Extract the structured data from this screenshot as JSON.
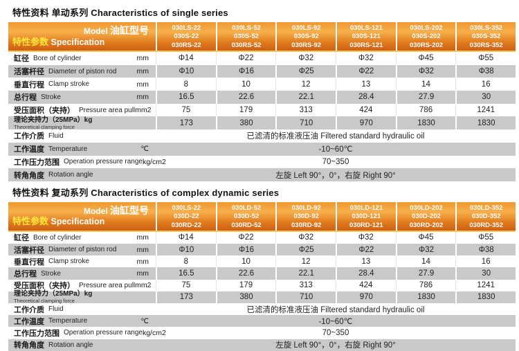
{
  "colors": {
    "header_gradient": [
      "#ef9730",
      "#f8b04c",
      "#e07a1d",
      "#cd5f15"
    ],
    "stripe_gray": "#c9c9c9",
    "spec_label_yellow": "#ffe63c",
    "header_text": "#ffffff",
    "title_text": "#111111"
  },
  "sections": [
    {
      "title_cn": "特性资料  单动系列",
      "title_en": "Characteristics of single series",
      "header": {
        "model_en": "Model",
        "model_cn": "油缸型号",
        "spec_cn": "特性参数",
        "spec_en": "Specification",
        "columns": [
          [
            "030LS-22",
            "030S-22",
            "030RS-22"
          ],
          [
            "030LS-52",
            "030S-52",
            "030RS-52"
          ],
          [
            "030LS-92",
            "030S-92",
            "030RS-92"
          ],
          [
            "030LS-121",
            "030S-121",
            "030RS-121"
          ],
          [
            "030LS-202",
            "030S-202",
            "030RS-202"
          ],
          [
            "030LS-352",
            "030S-352",
            "030RS-352"
          ]
        ]
      },
      "rows": [
        {
          "cn": "缸径",
          "en": "Bore of cylinder",
          "unit": "mm",
          "values": [
            "Φ14",
            "Φ22",
            "Φ32",
            "Φ32",
            "Φ45",
            "Φ55"
          ]
        },
        {
          "cn": "活塞杆径",
          "en": "Diameter of piston rod",
          "unit": "mm",
          "values": [
            "Φ10",
            "Φ16",
            "Φ25",
            "Φ22",
            "Φ32",
            "Φ38"
          ]
        },
        {
          "cn": "垂直行程",
          "en": "Clamp stroke",
          "unit": "mm",
          "values": [
            "8",
            "10",
            "12",
            "13",
            "14",
            "16"
          ]
        },
        {
          "cn": "总行程",
          "en": "Stroke",
          "unit": "mm",
          "values": [
            "16.5",
            "22.6",
            "22.1",
            "28.4",
            "27.9",
            "30"
          ]
        },
        {
          "cn": "受压面积（夹持）",
          "en": "Pressure area pull",
          "unit": "mm2",
          "values": [
            "75",
            "179",
            "313",
            "424",
            "786",
            "1241"
          ]
        },
        {
          "cn": "理论夹持力（25MPa）kg",
          "sub": "Theoretical clamping force",
          "values": [
            "173",
            "380",
            "710",
            "970",
            "1830",
            "1830"
          ]
        },
        {
          "cn": "工作介质",
          "en": "Fluid",
          "unit": "",
          "merged": "已滤清的标准液压油  Filtered standard hydraulic oil"
        },
        {
          "cn": "工作温度",
          "en": "Temperature",
          "unit": "℃",
          "merged": "-10~60℃"
        },
        {
          "cn": "工作压力范围",
          "en": "Operation pressure range",
          "unit": "kg/cm2",
          "merged": "70~350"
        },
        {
          "cn": "转角角度",
          "en": "Rotation angle",
          "unit": "",
          "merged": "左旋 Left 90°，0°，右旋 Right 90°"
        }
      ]
    },
    {
      "title_cn": "特性资料  复动系列",
      "title_en": "Characteristics of complex dynamic series",
      "header": {
        "model_en": "Model",
        "model_cn": "油缸型号",
        "spec_cn": "特性参数",
        "spec_en": "Specification",
        "columns": [
          [
            "030LS-22",
            "030D-22",
            "030RD-22"
          ],
          [
            "030LD-52",
            "030D-52",
            "030RD-52"
          ],
          [
            "030LD-92",
            "030D-92",
            "030RD-92"
          ],
          [
            "030LD-121",
            "030D-121",
            "030RD-121"
          ],
          [
            "030LD-202",
            "030D-202",
            "030RD-202"
          ],
          [
            "030LD-352",
            "030D-352",
            "030RD-352"
          ]
        ]
      },
      "rows": [
        {
          "cn": "缸径",
          "en": "Bore of cylinder",
          "unit": "mm",
          "values": [
            "Φ14",
            "Φ22",
            "Φ32",
            "Φ32",
            "Φ45",
            "Φ55"
          ]
        },
        {
          "cn": "活塞杆径",
          "en": "Diameter of piston rod",
          "unit": "mm",
          "values": [
            "Φ10",
            "Φ16",
            "Φ25",
            "Φ22",
            "Φ32",
            "Φ38"
          ]
        },
        {
          "cn": "垂直行程",
          "en": "Clamp stroke",
          "unit": "mm",
          "values": [
            "8",
            "10",
            "12",
            "13",
            "14",
            "16"
          ]
        },
        {
          "cn": "总行程",
          "en": "Stroke",
          "unit": "mm",
          "values": [
            "16.5",
            "22.6",
            "22.1",
            "28.4",
            "27.9",
            "30"
          ]
        },
        {
          "cn": "受压面积（夹持）",
          "en": "Pressure area pull",
          "unit": "mm2",
          "values": [
            "75",
            "179",
            "313",
            "424",
            "786",
            "1241"
          ]
        },
        {
          "cn": "理论夹持力（25MPa）kg",
          "sub": "Theoretical clamping force",
          "values": [
            "173",
            "380",
            "710",
            "970",
            "1830",
            "1830"
          ]
        },
        {
          "cn": "工作介质",
          "en": "Fluid",
          "unit": "",
          "merged": "已滤清的标准液压油  Filtered standard hydraulic oil"
        },
        {
          "cn": "工作温度",
          "en": "Temperature",
          "unit": "℃",
          "merged": "-10~60℃"
        },
        {
          "cn": "工作压力范围",
          "en": "Operation pressure range",
          "unit": "kg/cm2",
          "merged": "70~350"
        },
        {
          "cn": "转角角度",
          "en": "Rotation angle",
          "unit": "",
          "merged": "左旋 Left 90°，0°，右旋 Right 90°"
        }
      ]
    }
  ]
}
